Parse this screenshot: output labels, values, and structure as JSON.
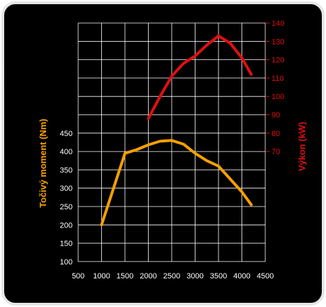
{
  "colors": {
    "background": "#000000",
    "frame": "#e6e6e6",
    "grid": "#ffffff",
    "torque": "#f5a000",
    "power": "#e00f0f",
    "tick_text_left": "#ffffff",
    "tick_text_right": "#e00f0f"
  },
  "chart_data": {
    "type": "line",
    "title": "",
    "grid": true,
    "x": {
      "label": "",
      "range": [
        500,
        4500
      ],
      "ticks": [
        "500",
        "1000",
        "1500",
        "2000",
        "2500",
        "3000",
        "3500",
        "4000",
        "4500"
      ]
    },
    "y_left": {
      "label": "Točivý moment (Nm)",
      "range": [
        100,
        450
      ],
      "ticks": [
        "100",
        "150",
        "200",
        "250",
        "300",
        "350",
        "400",
        "450"
      ]
    },
    "y_right": {
      "label": "Výkon (kW)",
      "range": [
        70,
        140
      ],
      "ticks": [
        "70",
        "80",
        "90",
        "100",
        "110",
        "120",
        "130",
        "140"
      ]
    },
    "series": [
      {
        "axis": "left",
        "color": "#f5a000",
        "x": [
          1000,
          1500,
          1750,
          2000,
          2250,
          2500,
          2750,
          3000,
          3250,
          3500,
          3750,
          4000,
          4200
        ],
        "values": [
          200,
          395,
          405,
          418,
          428,
          430,
          420,
          395,
          375,
          360,
          325,
          290,
          255
        ]
      },
      {
        "axis": "right",
        "color": "#e00f0f",
        "x": [
          2000,
          2250,
          2500,
          2750,
          3000,
          3250,
          3500,
          3750,
          4000,
          4200
        ],
        "values": [
          88,
          100,
          111,
          118,
          122,
          128,
          133,
          129,
          121,
          112
        ]
      }
    ]
  }
}
